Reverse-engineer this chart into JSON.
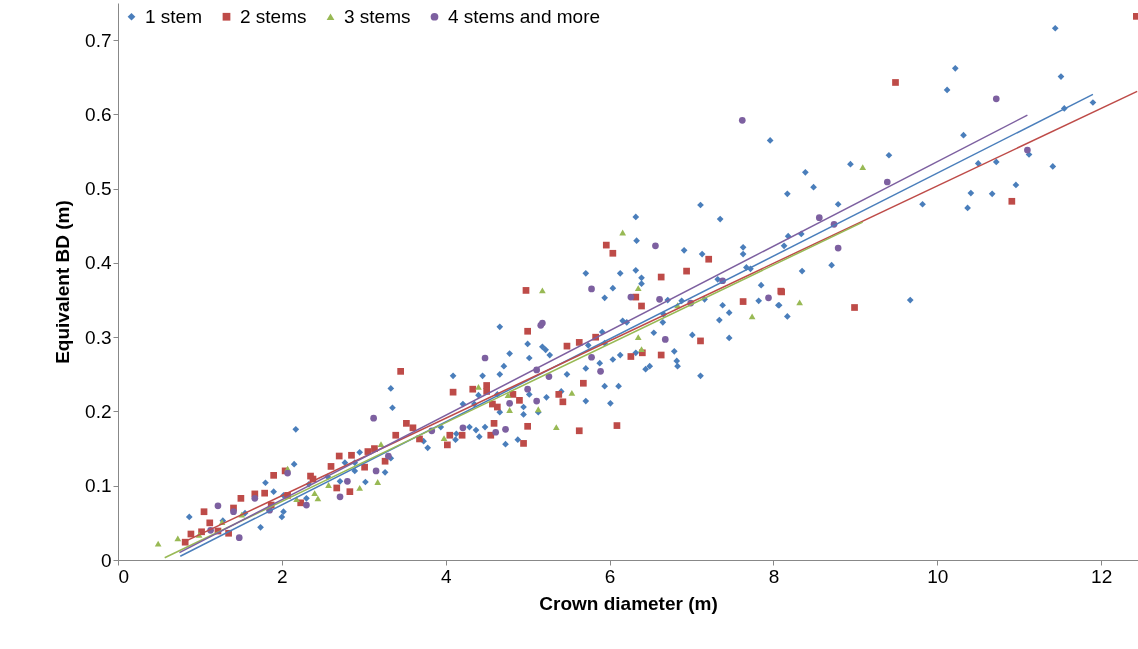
{
  "chart_data": {
    "type": "scatter",
    "xlabel": "Crown diameter (m)",
    "ylabel": "Equivalent BD (m)",
    "xlim": [
      0,
      12.45
    ],
    "ylim": [
      0,
      0.75
    ],
    "xticks": [
      0,
      2,
      4,
      6,
      8,
      10,
      12
    ],
    "yticks": [
      0,
      0.1,
      0.2,
      0.3,
      0.4,
      0.5,
      0.6,
      0.7
    ],
    "grid": false,
    "legend": "top left",
    "series": [
      {
        "name": "1 stem",
        "color": "#4a7ebb",
        "marker": "diamond",
        "x": [
          11.44,
          11.51,
          11.55,
          11.9,
          10.22,
          10.12,
          10.32,
          11.12,
          10.5,
          10.72,
          11.41,
          10.41,
          10.67,
          10.96,
          10.37,
          9.82,
          9.67,
          9.41,
          8.94,
          8.39,
          8.17,
          8.49,
          8.79,
          8.18,
          8.34,
          8.13,
          8.35,
          8.71,
          8.07,
          8.17,
          7.96,
          7.11,
          7.35,
          6.32,
          6.33,
          6.91,
          7.13,
          7.63,
          7.63,
          7.67,
          7.72,
          7.85,
          7.82,
          8.06,
          7.38,
          7.46,
          7.34,
          7.46,
          7.01,
          7.11,
          7.16,
          7.32,
          6.88,
          6.71,
          6.65,
          6.66,
          6.54,
          6.79,
          6.82,
          6.83,
          6.44,
          6.49,
          6.32,
          6.39,
          6.39,
          6.13,
          6.32,
          6.04,
          5.94,
          5.71,
          6.16,
          6.21,
          5.91,
          5.74,
          5.94,
          6.13,
          6.04,
          5.88,
          5.71,
          5.48,
          5.94,
          6.11,
          5.71,
          6.01,
          5.41,
          4.66,
          5.0,
          4.78,
          5.02,
          5.18,
          5.22,
          5.27,
          4.71,
          4.66,
          4.45,
          4.09,
          3.33,
          3.35,
          4.21,
          4.35,
          4.4,
          4.63,
          4.95,
          4.95,
          4.66,
          5.13,
          5.02,
          5.23,
          4.37,
          4.29,
          4.48,
          4.41,
          3.94,
          4.13,
          4.12,
          3.78,
          3.73,
          4.73,
          4.88,
          2.17,
          2.15,
          1.8,
          1.9,
          1.55,
          0.87,
          1.28,
          1.74,
          2.0,
          2.02,
          2.02,
          2.3,
          2.33,
          2.56,
          2.77,
          2.89,
          2.95,
          2.89,
          2.71,
          3.02,
          3.26,
          3.33
        ],
        "values": [
          0.716,
          0.651,
          0.608,
          0.616,
          0.662,
          0.633,
          0.572,
          0.546,
          0.534,
          0.536,
          0.53,
          0.494,
          0.493,
          0.505,
          0.474,
          0.479,
          0.35,
          0.545,
          0.533,
          0.522,
          0.493,
          0.502,
          0.479,
          0.436,
          0.439,
          0.423,
          0.389,
          0.397,
          0.343,
          0.328,
          0.565,
          0.478,
          0.459,
          0.462,
          0.43,
          0.417,
          0.412,
          0.421,
          0.412,
          0.394,
          0.392,
          0.37,
          0.349,
          0.343,
          0.343,
          0.333,
          0.323,
          0.299,
          0.303,
          0.248,
          0.351,
          0.378,
          0.349,
          0.35,
          0.32,
          0.331,
          0.306,
          0.281,
          0.268,
          0.261,
          0.257,
          0.261,
          0.279,
          0.38,
          0.372,
          0.386,
          0.39,
          0.366,
          0.353,
          0.386,
          0.322,
          0.32,
          0.307,
          0.289,
          0.292,
          0.276,
          0.27,
          0.265,
          0.258,
          0.25,
          0.234,
          0.234,
          0.214,
          0.211,
          0.227,
          0.314,
          0.291,
          0.278,
          0.272,
          0.287,
          0.283,
          0.276,
          0.261,
          0.25,
          0.248,
          0.248,
          0.231,
          0.205,
          0.21,
          0.21,
          0.222,
          0.223,
          0.206,
          0.196,
          0.199,
          0.199,
          0.223,
          0.219,
          0.175,
          0.179,
          0.179,
          0.166,
          0.179,
          0.17,
          0.162,
          0.151,
          0.16,
          0.156,
          0.162,
          0.176,
          0.129,
          0.104,
          0.092,
          0.063,
          0.058,
          0.053,
          0.044,
          0.058,
          0.065,
          0.087,
          0.083,
          0.102,
          0.112,
          0.131,
          0.131,
          0.145,
          0.12,
          0.106,
          0.105,
          0.118,
          0.137
        ]
      },
      {
        "name": "2 stems",
        "color": "#be4b48",
        "marker": "square",
        "x": [
          9.49,
          12.43,
          10.91,
          8.99,
          8.1,
          5.96,
          6.04,
          7.21,
          6.94,
          6.63,
          6.32,
          6.39,
          8.09,
          7.63,
          5.83,
          5.63,
          5.48,
          7.11,
          6.4,
          6.26,
          6.63,
          5.68,
          5.43,
          5.63,
          6.09,
          4.98,
          5.0,
          3.45,
          4.33,
          4.5,
          4.5,
          4.09,
          4.82,
          4.9,
          4.57,
          4.63,
          5.38,
          3.52,
          3.6,
          3.39,
          4.59,
          5.0,
          4.05,
          4.2,
          4.55,
          4.02,
          4.95,
          3.68,
          2.04,
          1.9,
          2.35,
          2.38,
          2.7,
          2.6,
          2.85,
          3.05,
          3.13,
          3.26,
          3.01,
          2.67,
          2.83,
          1.79,
          1.67,
          1.5,
          1.41,
          1.05,
          1.12,
          0.89,
          1.02,
          0.82,
          1.22,
          1.35,
          2.07,
          2.23,
          1.87
        ],
        "values": [
          0.643,
          0.732,
          0.483,
          0.34,
          0.361,
          0.424,
          0.413,
          0.405,
          0.389,
          0.381,
          0.354,
          0.342,
          0.362,
          0.348,
          0.3,
          0.293,
          0.288,
          0.295,
          0.279,
          0.274,
          0.276,
          0.238,
          0.213,
          0.174,
          0.181,
          0.363,
          0.308,
          0.254,
          0.23,
          0.235,
          0.227,
          0.226,
          0.223,
          0.215,
          0.21,
          0.206,
          0.223,
          0.184,
          0.178,
          0.168,
          0.184,
          0.18,
          0.168,
          0.168,
          0.168,
          0.155,
          0.157,
          0.163,
          0.12,
          0.114,
          0.113,
          0.109,
          0.14,
          0.126,
          0.141,
          0.146,
          0.15,
          0.133,
          0.125,
          0.097,
          0.092,
          0.09,
          0.089,
          0.083,
          0.07,
          0.065,
          0.05,
          0.035,
          0.038,
          0.024,
          0.039,
          0.036,
          0.087,
          0.077,
          0.074
        ]
      },
      {
        "name": "3 stems",
        "color": "#98b954",
        "marker": "triangle",
        "x": [
          9.09,
          8.32,
          6.16,
          6.35,
          6.35,
          6.39,
          7.74,
          5.54,
          6.83,
          5.18,
          4.4,
          4.76,
          4.78,
          5.13,
          5.35,
          3.98,
          3.21,
          0.49,
          0.73,
          0.99,
          1.27,
          1.51,
          2.07,
          3.17,
          2.95,
          2.44,
          2.4,
          2.18,
          2.57
        ],
        "values": [
          0.529,
          0.347,
          0.441,
          0.366,
          0.3,
          0.284,
          0.328,
          0.225,
          0.343,
          0.363,
          0.233,
          0.222,
          0.202,
          0.203,
          0.179,
          0.164,
          0.156,
          0.022,
          0.029,
          0.034,
          0.051,
          0.061,
          0.123,
          0.105,
          0.097,
          0.083,
          0.09,
          0.082,
          0.101
        ]
      },
      {
        "name": "4 stems and more",
        "color": "#7d60a0",
        "marker": "circle",
        "x": [
          10.72,
          11.1,
          9.39,
          8.56,
          8.74,
          8.79,
          7.62,
          6.56,
          5.78,
          6.26,
          6.61,
          6.99,
          7.38,
          7.94,
          6.68,
          5.78,
          5.89,
          5.16,
          5.18,
          4.48,
          5.11,
          5.0,
          4.78,
          5.11,
          5.26,
          3.12,
          4.21,
          4.61,
          4.73,
          3.83,
          2.07,
          1.22,
          1.67,
          1.41,
          1.13,
          1.48,
          1.85,
          2.3,
          2.71,
          2.8,
          3.15,
          3.3
        ],
        "values": [
          0.621,
          0.552,
          0.509,
          0.461,
          0.452,
          0.42,
          0.592,
          0.423,
          0.365,
          0.354,
          0.351,
          0.346,
          0.376,
          0.353,
          0.297,
          0.273,
          0.254,
          0.316,
          0.319,
          0.272,
          0.256,
          0.23,
          0.211,
          0.214,
          0.247,
          0.191,
          0.178,
          0.172,
          0.176,
          0.174,
          0.117,
          0.073,
          0.083,
          0.065,
          0.04,
          0.03,
          0.067,
          0.074,
          0.085,
          0.106,
          0.12,
          0.14
        ]
      },
      {
        "type": "line",
        "color": "#4a7ebb",
        "x": [
          0.76,
          11.9
        ],
        "values": [
          0.005,
          0.627
        ]
      },
      {
        "type": "line",
        "color": "#be4b48",
        "x": [
          0.82,
          12.44
        ],
        "values": [
          0.025,
          0.631
        ]
      },
      {
        "type": "line",
        "color": "#98b954",
        "x": [
          0.57,
          9.09
        ],
        "values": [
          0.003,
          0.455
        ]
      },
      {
        "type": "line",
        "color": "#7d60a0",
        "x": [
          0.75,
          11.1
        ],
        "values": [
          0.01,
          0.599
        ]
      }
    ]
  }
}
